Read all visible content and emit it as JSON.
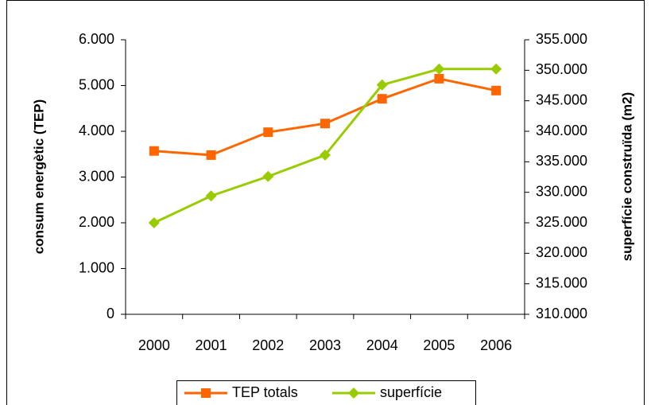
{
  "chart_data": {
    "type": "line",
    "categories": [
      "2000",
      "2001",
      "2002",
      "2003",
      "2004",
      "2005",
      "2006"
    ],
    "ylabel": "consum energètic (TEP)",
    "y2label": "superfície construïda (m2)",
    "ylim": [
      0,
      6000
    ],
    "yticks": [
      0,
      {
        "value": 1000,
        "label": "1.000"
      },
      {
        "value": 2000,
        "label": "2.000"
      },
      {
        "value": 3000,
        "label": "3.000"
      },
      {
        "value": 4000,
        "label": "4.000"
      },
      {
        "value": 5000,
        "label": "5.000"
      },
      {
        "value": 6000,
        "label": "6.000"
      }
    ],
    "y2lim": [
      310000,
      355000
    ],
    "y2ticks": [
      {
        "value": 310000,
        "label": "310.000"
      },
      {
        "value": 315000,
        "label": "315.000"
      },
      {
        "value": 320000,
        "label": "320.000"
      },
      {
        "value": 325000,
        "label": "325.000"
      },
      {
        "value": 330000,
        "label": "330.000"
      },
      {
        "value": 335000,
        "label": "335.000"
      },
      {
        "value": 340000,
        "label": "340.000"
      },
      {
        "value": 345000,
        "label": "345.000"
      },
      {
        "value": 350000,
        "label": "350.000"
      },
      {
        "value": 355000,
        "label": "355.000"
      }
    ],
    "legend": "bottom",
    "series": [
      {
        "name": "TEP totals",
        "color": "#ff6600",
        "marker": "square",
        "values": [
          3570,
          3480,
          3980,
          4170,
          4710,
          5150,
          4890
        ]
      },
      {
        "name": "superfície",
        "color": "#99cc00",
        "marker": "diamond",
        "axis": "y2",
        "values": [
          325000,
          329400,
          332600,
          336100,
          347600,
          350200,
          350200
        ]
      }
    ]
  }
}
